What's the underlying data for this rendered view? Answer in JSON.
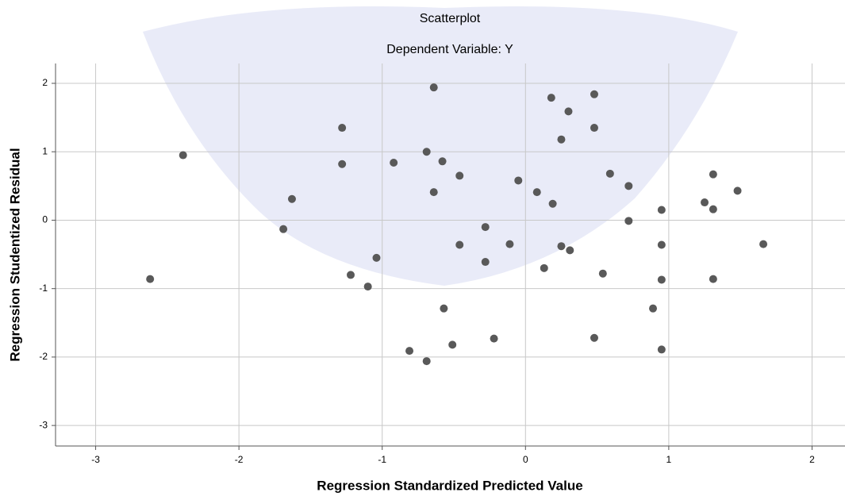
{
  "chart_data": {
    "type": "scatter",
    "title": "Scatterplot",
    "subtitle": "Dependent Variable: Y",
    "x_label": "Regression Standardized Predicted Value",
    "y_label": "Regression Studentized Residual",
    "x": [
      -2.62,
      -2.39,
      -1.69,
      -1.63,
      -1.28,
      -1.28,
      -1.22,
      -1.1,
      -1.04,
      -0.92,
      -0.81,
      -0.69,
      -0.69,
      -0.64,
      -0.64,
      -0.58,
      -0.57,
      -0.51,
      -0.46,
      -0.46,
      -0.28,
      -0.28,
      -0.22,
      -0.11,
      -0.05,
      0.08,
      0.13,
      0.18,
      0.19,
      0.25,
      0.25,
      0.3,
      0.31,
      0.48,
      0.48,
      0.48,
      0.54,
      0.59,
      0.72,
      0.72,
      0.89,
      0.95,
      0.95,
      0.95,
      0.95,
      1.25,
      1.31,
      1.31,
      1.31,
      1.48,
      1.66
    ],
    "values": [
      -0.86,
      0.95,
      -0.13,
      0.31,
      1.35,
      0.82,
      -0.8,
      -0.97,
      -0.55,
      0.84,
      -1.91,
      -2.06,
      1.0,
      1.94,
      0.41,
      0.86,
      -1.29,
      -1.82,
      0.65,
      -0.36,
      -0.1,
      -0.61,
      -1.73,
      -0.35,
      0.58,
      0.41,
      -0.7,
      1.79,
      0.24,
      1.18,
      -0.38,
      1.59,
      -0.44,
      1.84,
      1.35,
      -1.72,
      -0.78,
      0.68,
      0.5,
      -0.01,
      -1.29,
      0.15,
      -0.36,
      -0.87,
      -1.89,
      0.26,
      0.67,
      0.16,
      -0.86,
      0.43,
      -0.35
    ],
    "color": "#595959",
    "xlim": [
      -3.28,
      2.23
    ],
    "ylim": [
      -3.3,
      2.29
    ],
    "xticks": [
      -3,
      -2,
      -1,
      0,
      1,
      2
    ],
    "yticks": [
      -3,
      -2,
      -1,
      0,
      1,
      2
    ],
    "grid": true
  }
}
